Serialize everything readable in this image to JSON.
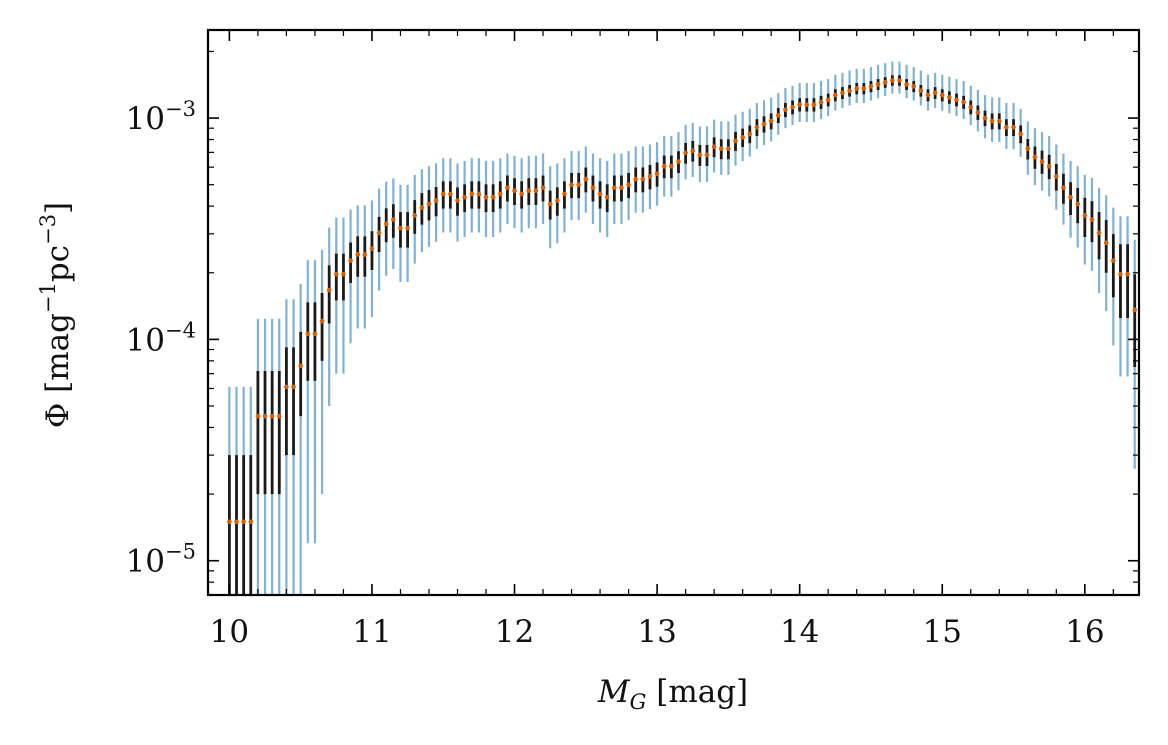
{
  "chart_data": {
    "type": "scatter",
    "title": "",
    "xlabel_main": "M",
    "xlabel_sub": "G",
    "xlabel_unit": " [mag]",
    "ylabel_main": "Φ [mag",
    "ylabel_exp1": "−1",
    "ylabel_mid": "pc",
    "ylabel_exp2": "−3",
    "ylabel_end": "]",
    "xlim": [
      9.85,
      16.38
    ],
    "ylim": [
      7e-06,
      0.0025
    ],
    "yscale": "log",
    "grid": false,
    "x_ticks": [
      {
        "value": 10,
        "label": "10"
      },
      {
        "value": 11,
        "label": "11"
      },
      {
        "value": 12,
        "label": "12"
      },
      {
        "value": 13,
        "label": "13"
      },
      {
        "value": 14,
        "label": "14"
      },
      {
        "value": 15,
        "label": "15"
      },
      {
        "value": 16,
        "label": "16"
      }
    ],
    "y_ticks": [
      {
        "value": 1e-05,
        "base": "10",
        "exp": "−5"
      },
      {
        "value": 0.0001,
        "base": "10",
        "exp": "−4"
      },
      {
        "value": 0.001,
        "base": "10",
        "exp": "−3"
      }
    ],
    "x_start": 10.0,
    "x_step": 0.05,
    "series": [
      {
        "name": "luminosity function",
        "color": "#d95f02",
        "role": "points"
      },
      {
        "name": "inner error",
        "color": "#1a1a1a",
        "role": "errorbar"
      },
      {
        "name": "outer error",
        "color": "#7fb2d5",
        "role": "errorbar"
      }
    ],
    "phi_x1e5": [
      1.5,
      1.5,
      1.5,
      1.5,
      4.5,
      4.5,
      4.5,
      4.5,
      6.1,
      6.1,
      7.6,
      10.6,
      10.6,
      12.1,
      16.7,
      19.7,
      19.7,
      22.7,
      24.2,
      24.2,
      25.7,
      30.3,
      33.3,
      34.8,
      31.8,
      31.8,
      36.3,
      39.4,
      40.9,
      42.4,
      45.4,
      45.4,
      42.4,
      43.9,
      45.4,
      45.4,
      43.9,
      43.9,
      45.4,
      48.5,
      47.0,
      45.4,
      47.0,
      47.0,
      48.5,
      40.9,
      42.4,
      45.4,
      50.0,
      50.0,
      53.0,
      48.5,
      45.4,
      43.9,
      48.5,
      48.5,
      50.0,
      53.0,
      53.0,
      54.5,
      56.0,
      60.6,
      60.6,
      63.6,
      69.7,
      71.2,
      68.2,
      68.2,
      74.2,
      72.7,
      72.7,
      78.8,
      81.8,
      84.8,
      90.9,
      93.9,
      97.0,
      103,
      109,
      112,
      115,
      115,
      115,
      118,
      121,
      127,
      130,
      133,
      136,
      136,
      139,
      142,
      145,
      148,
      148,
      142,
      139,
      133,
      127,
      130,
      127,
      124,
      121,
      118,
      112,
      106,
      100,
      97.0,
      97.0,
      90.9,
      90.9,
      84.8,
      72.7,
      66.7,
      63.6,
      60.6,
      54.5,
      48.5,
      43.9,
      40.9,
      36.3,
      34.8,
      30.3,
      27.3,
      22.7,
      19.7,
      19.7,
      13.6,
      10.6,
      6.1,
      6.1,
      3.0,
      1.5
    ],
    "inner_lo": [
      0.1,
      0.1,
      0.1,
      0.1,
      2.0,
      2.0,
      2.0,
      2.0,
      3.0,
      3.0,
      4.5,
      6.5,
      6.5,
      8.0,
      11.8,
      15.0,
      15.0,
      18.0,
      19.2,
      19.2,
      20.6,
      24.8,
      27.5,
      28.8,
      26.0,
      26.0,
      30.0,
      33.0,
      34.5,
      36.0,
      39.0,
      39.0,
      36.2,
      37.6,
      39.0,
      39.0,
      37.6,
      37.6,
      39.0,
      42.0,
      40.5,
      39.0,
      40.5,
      40.5,
      42.0,
      34.8,
      36.2,
      39.0,
      43.5,
      43.5,
      46.2,
      42.0,
      39.0,
      37.6,
      42.0,
      42.0,
      43.5,
      46.2,
      46.2,
      47.6,
      49.0,
      53.5,
      53.5,
      56.4,
      62.2,
      63.6,
      60.8,
      60.8,
      66.6,
      65.2,
      65.2,
      71.0,
      74.0,
      77.0,
      83.0,
      86.0,
      89.0,
      95,
      101,
      104,
      107,
      107,
      107,
      110,
      113,
      119,
      122,
      125,
      128,
      128,
      131,
      134,
      137,
      140,
      140,
      134,
      131,
      125,
      119,
      122,
      119,
      116,
      113,
      110,
      104,
      98,
      92,
      89.0,
      89.0,
      83.0,
      83.0,
      77.0,
      65.0,
      59.0,
      56.0,
      53.0,
      47.0,
      41.0,
      36.5,
      33.5,
      29.0,
      27.5,
      23.0,
      20.0,
      15.5,
      12.5,
      12.5,
      7.5,
      5.0,
      2.0,
      2.0,
      0.5,
      0.1
    ],
    "inner_hi": [
      3.0,
      3.0,
      3.0,
      3.0,
      7.2,
      7.2,
      7.2,
      7.2,
      9.2,
      9.2,
      10.8,
      14.7,
      14.7,
      16.2,
      21.6,
      24.4,
      24.4,
      27.4,
      29.2,
      29.2,
      30.8,
      35.8,
      39.1,
      40.8,
      37.6,
      37.6,
      42.6,
      45.8,
      47.3,
      48.8,
      51.8,
      51.8,
      48.6,
      50.2,
      51.8,
      51.8,
      50.2,
      50.2,
      51.8,
      55.0,
      53.5,
      51.8,
      53.5,
      53.5,
      55.0,
      47.0,
      48.6,
      51.8,
      56.5,
      56.5,
      59.8,
      55.0,
      51.8,
      50.2,
      55.0,
      55.0,
      56.5,
      59.8,
      59.8,
      61.4,
      63.0,
      67.7,
      67.7,
      70.8,
      77.2,
      78.8,
      75.6,
      75.6,
      81.8,
      80.2,
      80.2,
      86.6,
      89.6,
      92.6,
      98.8,
      101.8,
      105,
      111,
      117,
      120,
      123,
      123,
      123,
      126,
      129,
      135,
      138,
      141,
      144,
      144,
      147,
      150,
      153,
      156,
      156,
      150,
      147,
      141,
      135,
      138,
      135,
      132,
      129,
      126,
      120,
      114,
      108,
      105,
      105,
      98.8,
      98.8,
      92.6,
      80.4,
      74.4,
      71.2,
      68.2,
      62.0,
      56.0,
      51.3,
      48.3,
      43.6,
      42.1,
      37.6,
      34.6,
      29.9,
      26.9,
      26.9,
      19.7,
      16.2,
      10.2,
      10.2,
      6.0,
      3.0
    ],
    "outer_lo": [
      0.1,
      0.1,
      0.1,
      0.1,
      0.1,
      0.1,
      0.1,
      0.1,
      0.2,
      0.2,
      0.6,
      1.2,
      1.2,
      2.0,
      5.0,
      7.0,
      7.0,
      9.6,
      11.2,
      11.2,
      12.6,
      16.6,
      19.4,
      20.8,
      18.2,
      18.2,
      22.0,
      24.8,
      26.2,
      27.6,
      30.4,
      30.4,
      27.6,
      29.0,
      30.4,
      30.4,
      29.0,
      29.0,
      30.4,
      33.2,
      31.8,
      30.4,
      31.8,
      31.8,
      33.2,
      25.8,
      27.2,
      30.4,
      34.6,
      34.6,
      37.4,
      33.2,
      30.4,
      29.0,
      33.2,
      33.2,
      34.6,
      37.4,
      37.4,
      38.8,
      40.2,
      44.2,
      44.2,
      47.2,
      52.8,
      54.2,
      51.4,
      51.4,
      56.8,
      55.4,
      55.4,
      61.0,
      64.0,
      67.0,
      72.6,
      75.6,
      78.4,
      84,
      90,
      93,
      96,
      96,
      96,
      99,
      102,
      108,
      111,
      114,
      117,
      117,
      120,
      123,
      126,
      129,
      129,
      123,
      120,
      114,
      108,
      111,
      108,
      105,
      102,
      99,
      93,
      87,
      81,
      78.0,
      78.0,
      72.4,
      72.4,
      66.8,
      55.4,
      49.8,
      47.0,
      44.2,
      38.6,
      33.0,
      28.8,
      26.0,
      21.8,
      20.4,
      16.2,
      13.4,
      9.4,
      6.8,
      6.8,
      2.6,
      1.2,
      0.2,
      0.2,
      0.1,
      0.1
    ],
    "outer_hi": [
      6.1,
      6.1,
      6.1,
      6.1,
      12.4,
      12.4,
      12.4,
      12.4,
      15.2,
      15.2,
      17.8,
      22.8,
      22.8,
      25.4,
      32.0,
      35.5,
      35.5,
      38.6,
      40.4,
      40.4,
      42.4,
      48.0,
      51.6,
      53.4,
      50.0,
      50.0,
      55.4,
      58.8,
      60.6,
      62.4,
      65.8,
      65.8,
      62.4,
      64.1,
      65.8,
      65.8,
      64.1,
      64.1,
      65.8,
      69.2,
      67.6,
      65.8,
      67.6,
      67.6,
      69.2,
      60.6,
      62.4,
      65.8,
      71.0,
      71.0,
      74.4,
      69.2,
      65.8,
      64.1,
      69.2,
      69.2,
      71.0,
      74.4,
      74.4,
      76.0,
      77.8,
      83.0,
      83.0,
      86.4,
      93.2,
      95.0,
      91.6,
      91.6,
      98.4,
      96.6,
      96.6,
      103.4,
      106.8,
      110.2,
      117,
      120.4,
      123.8,
      130,
      137,
      140,
      144,
      144,
      144,
      147,
      150,
      157,
      160,
      164,
      167,
      167,
      170,
      174,
      177,
      180,
      180,
      174,
      170,
      164,
      157,
      160,
      157,
      154,
      150,
      147,
      140,
      134,
      127,
      123.8,
      123.8,
      117,
      117,
      110.2,
      96.6,
      90,
      86.4,
      83,
      76,
      69.2,
      64,
      60.6,
      55.4,
      53.6,
      48.4,
      44.8,
      39.4,
      36,
      36,
      28.2,
      24,
      16,
      16,
      11,
      6.1
    ]
  }
}
